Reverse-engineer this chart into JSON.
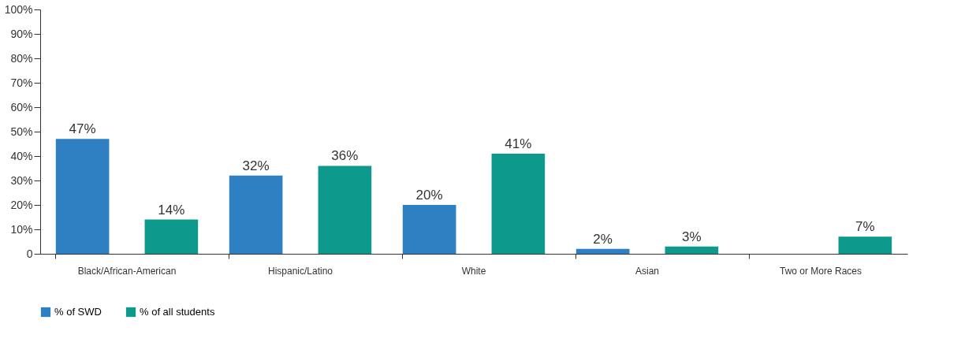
{
  "chart_data": {
    "type": "bar",
    "categories": [
      "Black/African-American",
      "Hispanic/Latino",
      "White",
      "Asian",
      "Two or More Races"
    ],
    "series": [
      {
        "name": "% of SWD",
        "color": "#2f80c3",
        "values": [
          47,
          32,
          20,
          2,
          null
        ],
        "value_labels": [
          "47%",
          "32%",
          "20%",
          "2%",
          null
        ]
      },
      {
        "name": "% of all students",
        "color": "#0d9a8c",
        "values": [
          14,
          36,
          41,
          3,
          7
        ],
        "value_labels": [
          "14%",
          "36%",
          "41%",
          "3%",
          "7%"
        ]
      }
    ],
    "ylim": [
      0,
      100
    ],
    "yticks": [
      0,
      {
        "value": 10,
        "label": "10%"
      },
      {
        "value": 20,
        "label": "20%"
      },
      {
        "value": 30,
        "label": "30%"
      },
      {
        "value": 40,
        "label": "40%"
      },
      {
        "value": 50,
        "label": "50%"
      },
      {
        "value": 60,
        "label": "60%"
      },
      {
        "value": 70,
        "label": "70%"
      },
      {
        "value": 80,
        "label": "80%"
      },
      {
        "value": 90,
        "label": "90%"
      },
      {
        "value": 100,
        "label": "100%"
      }
    ],
    "grid": false,
    "legend": "bottom"
  }
}
